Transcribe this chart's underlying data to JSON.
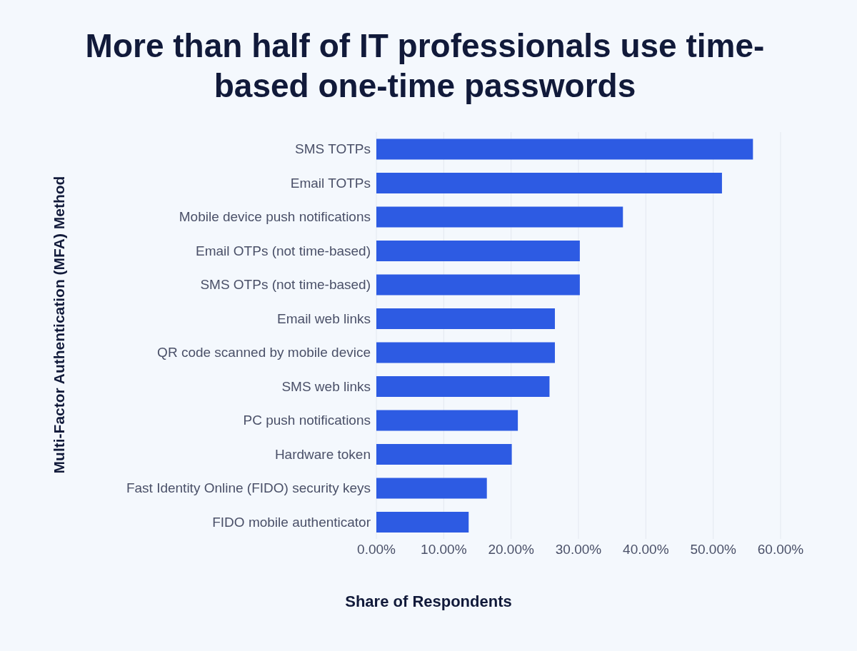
{
  "chart_data": {
    "type": "bar",
    "orientation": "horizontal",
    "title": "More than half of IT professionals use time-based one-time passwords",
    "xlabel": "Share of Respondents",
    "ylabel": "Multi-Factor Authentication (MFA) Method",
    "categories": [
      "SMS TOTPs",
      "Email TOTPs",
      "Mobile device push notifications",
      "Email OTPs (not time-based)",
      "SMS OTPs (not time-based)",
      "Email web links",
      "QR code scanned by mobile device",
      "SMS web links",
      "PC push notifications",
      "Hardware token",
      "Fast Identity Online (FIDO) security keys",
      "FIDO mobile authenticator"
    ],
    "values": [
      55.9,
      51.3,
      36.6,
      30.2,
      30.2,
      26.5,
      26.5,
      25.7,
      21.0,
      20.1,
      16.4,
      13.7
    ],
    "color": "#2d5be3",
    "xlim": [
      0,
      60
    ],
    "xticks": [
      {
        "value": 0,
        "label": "0.00%"
      },
      {
        "value": 10,
        "label": "10.00%"
      },
      {
        "value": 20,
        "label": "20.00%"
      },
      {
        "value": 30,
        "label": "30.00%"
      },
      {
        "value": 40,
        "label": "40.00%"
      },
      {
        "value": 50,
        "label": "50.00%"
      },
      {
        "value": 60,
        "label": "60.00%"
      }
    ],
    "grid": "x",
    "legend": false
  }
}
